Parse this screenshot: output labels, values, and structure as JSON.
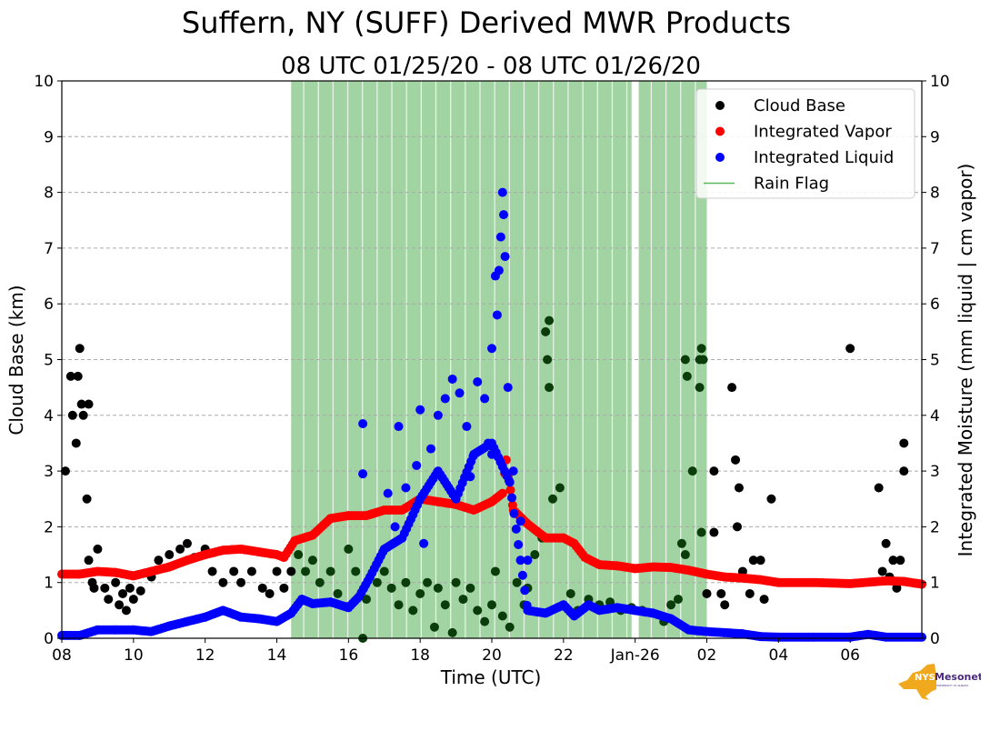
{
  "chart_data": {
    "type": "scatter",
    "title": "Suffern, NY (SUFF) Derived MWR Products",
    "subtitle": "08 UTC 01/25/20 - 08 UTC 01/26/20",
    "xlabel": "Time (UTC)",
    "ylabel": "Cloud Base (km)",
    "ylabel_right": "Integrated Moisture (mm liquid | cm vapor)",
    "xlim_hours_since_start": [
      0,
      24
    ],
    "ylim": [
      0,
      10
    ],
    "ylim_right": [
      0,
      10
    ],
    "x_ticks": [
      {
        "hour": 0,
        "label": "08"
      },
      {
        "hour": 2,
        "label": "10"
      },
      {
        "hour": 4,
        "label": "12"
      },
      {
        "hour": 6,
        "label": "14"
      },
      {
        "hour": 8,
        "label": "16"
      },
      {
        "hour": 10,
        "label": "18"
      },
      {
        "hour": 12,
        "label": "20"
      },
      {
        "hour": 14,
        "label": "22"
      },
      {
        "hour": 16,
        "label": "Jan-26"
      },
      {
        "hour": 18,
        "label": "02"
      },
      {
        "hour": 20,
        "label": "04"
      },
      {
        "hour": 22,
        "label": "06"
      }
    ],
    "y_ticks": [
      "0",
      "1",
      "2",
      "3",
      "4",
      "5",
      "6",
      "7",
      "8",
      "9",
      "10"
    ],
    "grid": "horizontal dashed",
    "legend_placement": "top-right",
    "legend": [
      {
        "label": "Cloud Base",
        "color": "#000000",
        "kind": "dot"
      },
      {
        "label": "Integrated Vapor",
        "color": "#ff0000",
        "kind": "dot"
      },
      {
        "label": "Integrated Liquid",
        "color": "#0000ff",
        "kind": "dot"
      },
      {
        "label": "Rain Flag",
        "color": "#5cb85c",
        "kind": "line"
      }
    ],
    "rain_flag_intervals": [
      [
        6.4,
        15.9
      ],
      [
        16.1,
        18.0
      ]
    ],
    "series": [
      {
        "name": "Integrated Vapor",
        "color": "#ff0000",
        "continuous": true,
        "points": [
          [
            0,
            1.15
          ],
          [
            0.5,
            1.15
          ],
          [
            1,
            1.2
          ],
          [
            1.5,
            1.18
          ],
          [
            2,
            1.12
          ],
          [
            2.5,
            1.2
          ],
          [
            3,
            1.28
          ],
          [
            3.5,
            1.4
          ],
          [
            4,
            1.5
          ],
          [
            4.5,
            1.58
          ],
          [
            5,
            1.6
          ],
          [
            5.5,
            1.55
          ],
          [
            6,
            1.5
          ],
          [
            6.2,
            1.45
          ],
          [
            6.5,
            1.75
          ],
          [
            7,
            1.85
          ],
          [
            7.5,
            2.15
          ],
          [
            8,
            2.2
          ],
          [
            8.5,
            2.2
          ],
          [
            9,
            2.3
          ],
          [
            9.5,
            2.3
          ],
          [
            10,
            2.5
          ],
          [
            10.5,
            2.45
          ],
          [
            11,
            2.4
          ],
          [
            11.5,
            2.3
          ],
          [
            12,
            2.45
          ],
          [
            12.3,
            2.6
          ],
          [
            12.4,
            3.2
          ],
          [
            12.6,
            2.3
          ],
          [
            13,
            2.05
          ],
          [
            13.5,
            1.8
          ],
          [
            14,
            1.8
          ],
          [
            14.3,
            1.7
          ],
          [
            14.6,
            1.45
          ],
          [
            15,
            1.32
          ],
          [
            15.5,
            1.3
          ],
          [
            16,
            1.25
          ],
          [
            16.5,
            1.28
          ],
          [
            17,
            1.27
          ],
          [
            17.5,
            1.22
          ],
          [
            18,
            1.15
          ],
          [
            18.5,
            1.1
          ],
          [
            19,
            1.08
          ],
          [
            19.5,
            1.05
          ],
          [
            20,
            1.0
          ],
          [
            21,
            1.0
          ],
          [
            22,
            0.98
          ],
          [
            23,
            1.03
          ],
          [
            23.5,
            1.02
          ],
          [
            24,
            0.97
          ]
        ]
      },
      {
        "name": "Integrated Liquid",
        "color": "#0000ff",
        "continuous": true,
        "points": [
          [
            0,
            0.05
          ],
          [
            0.5,
            0.05
          ],
          [
            1,
            0.15
          ],
          [
            1.5,
            0.15
          ],
          [
            2,
            0.15
          ],
          [
            2.5,
            0.12
          ],
          [
            3,
            0.22
          ],
          [
            3.5,
            0.3
          ],
          [
            4,
            0.38
          ],
          [
            4.5,
            0.5
          ],
          [
            5,
            0.38
          ],
          [
            5.5,
            0.35
          ],
          [
            6,
            0.3
          ],
          [
            6.4,
            0.45
          ],
          [
            6.7,
            0.7
          ],
          [
            7,
            0.62
          ],
          [
            7.5,
            0.65
          ],
          [
            8,
            0.55
          ],
          [
            8.3,
            0.75
          ],
          [
            8.6,
            1.1
          ],
          [
            9,
            1.6
          ],
          [
            9.5,
            1.8
          ],
          [
            10,
            2.5
          ],
          [
            10.5,
            3.0
          ],
          [
            11,
            2.5
          ],
          [
            11.5,
            3.3
          ],
          [
            12,
            3.5
          ],
          [
            12.5,
            2.8
          ],
          [
            12.8,
            1.4
          ],
          [
            13,
            0.5
          ],
          [
            13.5,
            0.45
          ],
          [
            14,
            0.6
          ],
          [
            14.3,
            0.4
          ],
          [
            14.7,
            0.6
          ],
          [
            15,
            0.5
          ],
          [
            15.5,
            0.55
          ],
          [
            16,
            0.5
          ],
          [
            16.5,
            0.45
          ],
          [
            17,
            0.35
          ],
          [
            17.5,
            0.15
          ],
          [
            18,
            0.12
          ],
          [
            18.5,
            0.1
          ],
          [
            19,
            0.08
          ],
          [
            19.5,
            0.03
          ],
          [
            20,
            0.02
          ],
          [
            21,
            0.02
          ],
          [
            22,
            0.02
          ],
          [
            22.5,
            0.07
          ],
          [
            23,
            0.02
          ],
          [
            24,
            0.02
          ]
        ],
        "extra_points": [
          [
            8.4,
            3.85
          ],
          [
            8.4,
            2.95
          ],
          [
            9.4,
            3.8
          ],
          [
            9.6,
            2.7
          ],
          [
            9.9,
            3.1
          ],
          [
            10,
            4.1
          ],
          [
            10.3,
            3.4
          ],
          [
            10.5,
            4.0
          ],
          [
            10.7,
            4.3
          ],
          [
            10.9,
            4.65
          ],
          [
            11.1,
            4.4
          ],
          [
            11.3,
            3.8
          ],
          [
            11.6,
            4.6
          ],
          [
            11.8,
            4.3
          ],
          [
            11.9,
            3.5
          ],
          [
            12.0,
            5.2
          ],
          [
            12.1,
            6.5
          ],
          [
            12.15,
            5.8
          ],
          [
            12.2,
            6.6
          ],
          [
            12.25,
            7.2
          ],
          [
            12.3,
            8.0
          ],
          [
            12.33,
            7.6
          ],
          [
            12.37,
            6.85
          ],
          [
            12.45,
            4.5
          ],
          [
            12.6,
            3.0
          ],
          [
            12.8,
            2.1
          ],
          [
            13.0,
            1.4
          ],
          [
            9.1,
            2.6
          ],
          [
            9.3,
            2.0
          ],
          [
            10.1,
            1.7
          ],
          [
            11.4,
            2.9
          ],
          [
            12.0,
            3.3
          ]
        ]
      },
      {
        "name": "Cloud Base",
        "color": "#000000",
        "continuous": false,
        "points": [
          [
            0.1,
            3.0
          ],
          [
            0.25,
            4.7
          ],
          [
            0.3,
            4.0
          ],
          [
            0.4,
            3.5
          ],
          [
            0.45,
            4.7
          ],
          [
            0.5,
            5.2
          ],
          [
            0.55,
            4.2
          ],
          [
            0.6,
            4.0
          ],
          [
            0.7,
            2.5
          ],
          [
            0.75,
            4.2
          ],
          [
            0.75,
            1.4
          ],
          [
            0.85,
            1.0
          ],
          [
            0.9,
            0.9
          ],
          [
            1.0,
            1.6
          ],
          [
            1.2,
            0.9
          ],
          [
            1.3,
            0.7
          ],
          [
            1.5,
            1.0
          ],
          [
            1.6,
            0.6
          ],
          [
            1.7,
            0.8
          ],
          [
            1.8,
            0.5
          ],
          [
            1.9,
            0.9
          ],
          [
            2.0,
            0.7
          ],
          [
            2.2,
            0.85
          ],
          [
            2.5,
            1.1
          ],
          [
            2.7,
            1.4
          ],
          [
            3,
            1.5
          ],
          [
            3.3,
            1.6
          ],
          [
            3.5,
            1.7
          ],
          [
            3.7,
            1.45
          ],
          [
            4,
            1.6
          ],
          [
            4.2,
            1.2
          ],
          [
            4.5,
            1.0
          ],
          [
            4.8,
            1.2
          ],
          [
            5,
            1.0
          ],
          [
            5.3,
            1.2
          ],
          [
            5.6,
            0.9
          ],
          [
            5.8,
            0.8
          ],
          [
            6.0,
            1.2
          ],
          [
            6.2,
            0.9
          ],
          [
            6.4,
            1.2
          ],
          [
            6.6,
            1.5
          ],
          [
            6.8,
            1.2
          ],
          [
            7.0,
            1.4
          ],
          [
            7.2,
            1.0
          ],
          [
            7.5,
            1.2
          ],
          [
            7.7,
            0.8
          ],
          [
            8.0,
            1.6
          ],
          [
            8.2,
            1.2
          ],
          [
            8.4,
            0.0
          ],
          [
            8.5,
            0.7
          ],
          [
            8.8,
            1.0
          ],
          [
            9.0,
            1.2
          ],
          [
            9.2,
            0.9
          ],
          [
            9.4,
            0.6
          ],
          [
            9.6,
            1.0
          ],
          [
            9.8,
            0.5
          ],
          [
            10.0,
            0.8
          ],
          [
            10.2,
            1.0
          ],
          [
            10.4,
            0.2
          ],
          [
            10.5,
            0.9
          ],
          [
            10.7,
            0.6
          ],
          [
            10.9,
            0.1
          ],
          [
            11.0,
            1.0
          ],
          [
            11.2,
            0.7
          ],
          [
            11.4,
            0.9
          ],
          [
            11.6,
            0.5
          ],
          [
            11.8,
            0.3
          ],
          [
            12.0,
            0.6
          ],
          [
            12.1,
            1.2
          ],
          [
            12.3,
            0.4
          ],
          [
            12.5,
            0.2
          ],
          [
            12.7,
            1.0
          ],
          [
            12.9,
            0.6
          ],
          [
            13.0,
            0.9
          ],
          [
            13.2,
            1.5
          ],
          [
            13.4,
            1.8
          ],
          [
            13.5,
            5.5
          ],
          [
            13.6,
            5.7
          ],
          [
            13.55,
            5.0
          ],
          [
            13.6,
            4.5
          ],
          [
            13.7,
            2.5
          ],
          [
            13.9,
            2.7
          ],
          [
            14.0,
            0.6
          ],
          [
            14.2,
            0.8
          ],
          [
            14.4,
            0.5
          ],
          [
            14.7,
            0.7
          ],
          [
            15.0,
            0.6
          ],
          [
            15.3,
            0.65
          ],
          [
            15.6,
            0.5
          ],
          [
            15.9,
            0.55
          ],
          [
            16.2,
            0.5
          ],
          [
            16.5,
            0.45
          ],
          [
            16.8,
            0.3
          ],
          [
            17.0,
            0.6
          ],
          [
            17.2,
            0.7
          ],
          [
            17.3,
            1.7
          ],
          [
            17.4,
            1.5
          ],
          [
            17.4,
            5.0
          ],
          [
            17.45,
            4.7
          ],
          [
            17.6,
            3.0
          ],
          [
            17.8,
            5.0
          ],
          [
            17.85,
            5.2
          ],
          [
            17.8,
            4.5
          ],
          [
            17.85,
            1.9
          ],
          [
            17.9,
            5.0
          ],
          [
            18.0,
            0.8
          ],
          [
            18.2,
            1.9
          ],
          [
            18.2,
            3.0
          ],
          [
            18.4,
            0.8
          ],
          [
            18.5,
            0.6
          ],
          [
            18.7,
            4.5
          ],
          [
            18.8,
            3.2
          ],
          [
            18.85,
            2.0
          ],
          [
            18.9,
            2.7
          ],
          [
            19.0,
            1.2
          ],
          [
            19.2,
            0.8
          ],
          [
            19.3,
            1.4
          ],
          [
            19.5,
            1.4
          ],
          [
            19.6,
            0.7
          ],
          [
            19.8,
            2.5
          ],
          [
            22.0,
            5.2
          ],
          [
            22.8,
            2.7
          ],
          [
            22.9,
            1.2
          ],
          [
            23.0,
            1.7
          ],
          [
            23.1,
            1.1
          ],
          [
            23.2,
            1.4
          ],
          [
            23.3,
            0.9
          ],
          [
            23.4,
            1.4
          ],
          [
            23.5,
            3.5
          ],
          [
            23.5,
            3.0
          ]
        ]
      }
    ]
  },
  "logo": {
    "text": "NYS Mesonet",
    "subtext": "UNIVERSITY AT ALBANY"
  }
}
